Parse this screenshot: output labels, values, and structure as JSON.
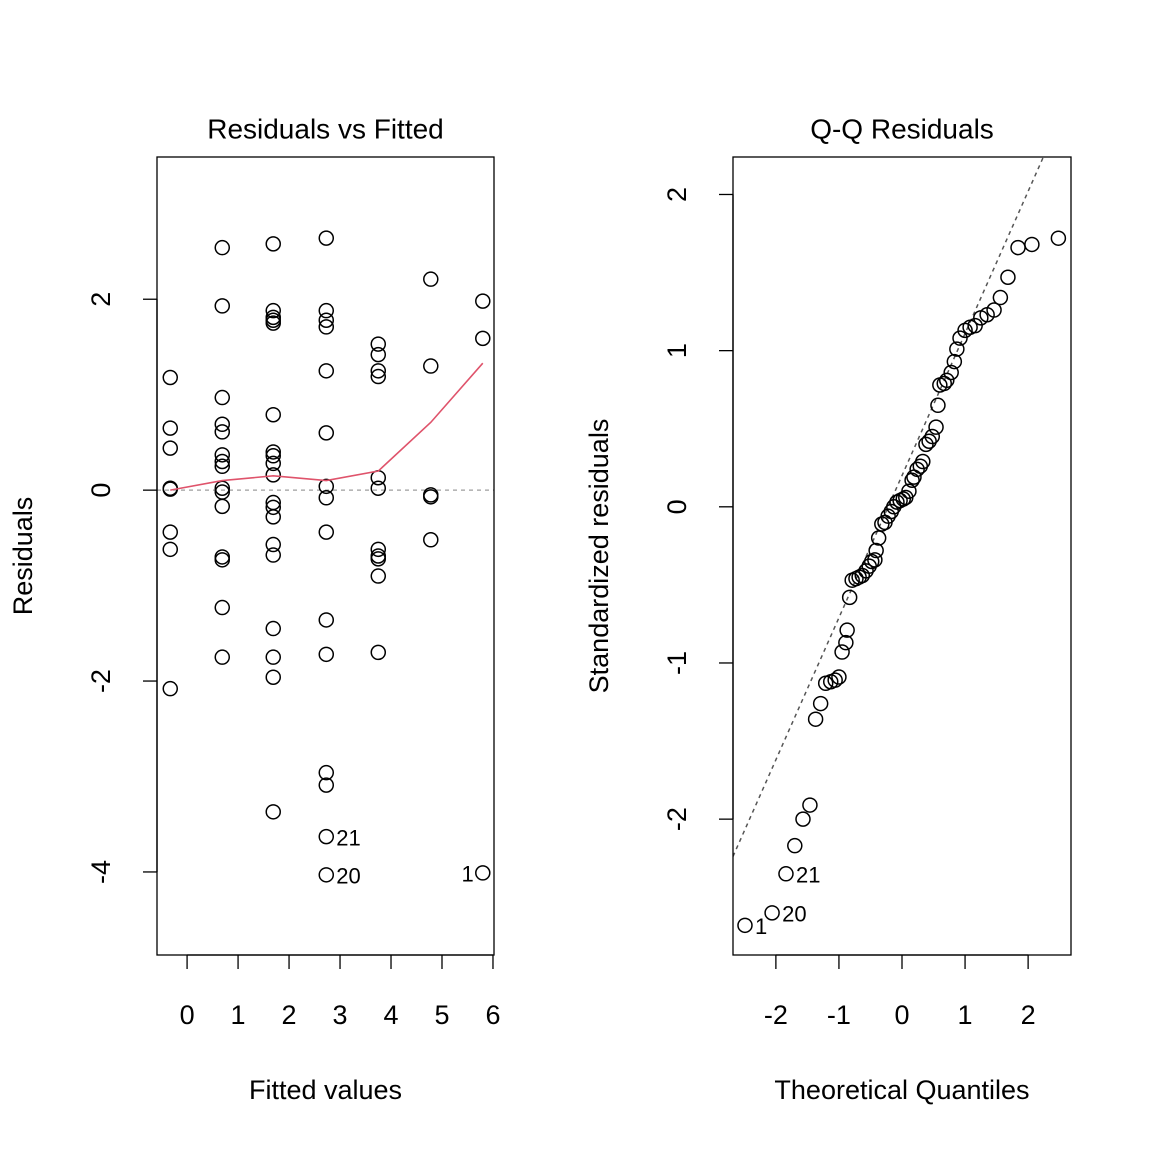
{
  "chart_data": [
    {
      "type": "scatter",
      "title": "Residuals vs Fitted",
      "xlabel": "Fitted values",
      "ylabel": "Residuals",
      "x": [
        -0.33,
        -0.33,
        -0.33,
        -0.33,
        -0.33,
        -0.33,
        -0.33,
        -0.33,
        0.69,
        0.69,
        0.69,
        0.69,
        0.69,
        0.69,
        0.69,
        0.69,
        0.69,
        0.69,
        0.69,
        0.69,
        0.69,
        0.69,
        0.69,
        1.69,
        1.69,
        1.69,
        1.69,
        1.69,
        1.69,
        1.69,
        1.69,
        1.69,
        1.69,
        1.69,
        1.69,
        1.69,
        1.69,
        1.69,
        1.69,
        1.69,
        1.69,
        1.69,
        2.73,
        2.73,
        2.73,
        2.73,
        2.73,
        2.73,
        2.73,
        2.73,
        2.73,
        2.73,
        2.73,
        2.73,
        2.73,
        2.73,
        2.73,
        3.75,
        3.75,
        3.75,
        3.75,
        3.75,
        3.75,
        3.75,
        3.75,
        3.75,
        3.75,
        3.75,
        4.78,
        4.78,
        4.78,
        4.78,
        4.78,
        5.8,
        5.8,
        5.8
      ],
      "values": [
        1.18,
        0.65,
        0.44,
        0.02,
        0.01,
        -0.44,
        -0.62,
        -2.08,
        2.54,
        1.93,
        0.97,
        0.69,
        0.61,
        0.37,
        0.3,
        0.25,
        0.02,
        -0.02,
        -0.17,
        -0.7,
        -0.73,
        -1.23,
        -1.75,
        2.58,
        1.88,
        1.81,
        1.78,
        1.75,
        0.79,
        0.4,
        0.36,
        0.28,
        0.16,
        -0.13,
        -0.18,
        -0.28,
        -0.57,
        -0.68,
        -1.45,
        -1.75,
        -1.96,
        -3.37,
        2.64,
        1.88,
        1.78,
        1.71,
        1.25,
        0.6,
        0.04,
        -0.08,
        -0.44,
        -1.36,
        -1.72,
        -2.96,
        -3.09,
        -3.63,
        -4.03,
        1.53,
        1.42,
        1.25,
        1.19,
        0.13,
        0.02,
        -0.62,
        -0.69,
        -0.72,
        -0.9,
        -1.7,
        2.21,
        1.3,
        -0.05,
        -0.07,
        -0.52,
        1.98,
        1.59,
        -4.01
      ],
      "color": "#000000",
      "smooth": {
        "color": "#DF536B",
        "x": [
          -0.33,
          0.69,
          1.69,
          2.73,
          3.75,
          4.78,
          5.8
        ],
        "values": [
          0.0,
          0.1,
          0.15,
          0.1,
          0.2,
          0.71,
          1.33
        ]
      },
      "hline": 0,
      "annotations": [
        {
          "text": "21",
          "x": 2.73,
          "y": -3.63,
          "side": "right"
        },
        {
          "text": "20",
          "x": 2.73,
          "y": -4.03,
          "side": "right"
        },
        {
          "text": "1",
          "x": 5.8,
          "y": -4.01,
          "side": "left"
        }
      ],
      "xlim": [
        -0.59,
        6.02
      ],
      "ylim": [
        -4.87,
        3.49
      ],
      "xticks": [
        0,
        1,
        2,
        3,
        4,
        5,
        6
      ],
      "yticks": [
        -4,
        -2,
        0,
        2
      ]
    },
    {
      "type": "scatter",
      "title": "Q-Q Residuals",
      "xlabel": "Theoretical Quantiles",
      "ylabel": "Standardized residuals",
      "x": [
        -2.49,
        -2.06,
        -1.84,
        -1.7,
        -1.57,
        -1.46,
        -1.37,
        -1.29,
        -1.21,
        -1.13,
        -1.06,
        -1.0,
        -0.95,
        -0.89,
        -0.87,
        -0.83,
        -0.79,
        -0.73,
        -0.68,
        -0.63,
        -0.57,
        -0.52,
        -0.48,
        -0.43,
        -0.41,
        -0.37,
        -0.32,
        -0.27,
        -0.22,
        -0.17,
        -0.13,
        -0.08,
        -0.03,
        0.02,
        0.06,
        0.11,
        0.16,
        0.19,
        0.24,
        0.29,
        0.33,
        0.38,
        0.43,
        0.48,
        0.54,
        0.57,
        0.6,
        0.67,
        0.71,
        0.78,
        0.83,
        0.87,
        0.92,
        1.0,
        1.08,
        1.16,
        1.25,
        1.35,
        1.46,
        1.56,
        1.68,
        1.84,
        2.06,
        2.48
      ],
      "values": [
        -2.68,
        -2.6,
        -2.35,
        -2.17,
        -2.0,
        -1.91,
        -1.36,
        -1.26,
        -1.13,
        -1.12,
        -1.11,
        -1.09,
        -0.93,
        -0.87,
        -0.79,
        -0.58,
        -0.47,
        -0.46,
        -0.45,
        -0.44,
        -0.41,
        -0.38,
        -0.35,
        -0.34,
        -0.28,
        -0.2,
        -0.11,
        -0.1,
        -0.06,
        -0.03,
        0.0,
        0.03,
        0.04,
        0.05,
        0.06,
        0.1,
        0.17,
        0.19,
        0.24,
        0.26,
        0.29,
        0.4,
        0.42,
        0.45,
        0.51,
        0.65,
        0.78,
        0.79,
        0.81,
        0.86,
        0.93,
        1.01,
        1.08,
        1.13,
        1.15,
        1.16,
        1.21,
        1.23,
        1.26,
        1.34,
        1.47,
        1.66,
        1.68,
        1.72
      ],
      "color": "#000000",
      "abline": {
        "intercept": 0.2,
        "slope": 0.91
      },
      "annotations": [
        {
          "text": "1",
          "x": -2.49,
          "y": -2.68,
          "side": "right"
        },
        {
          "text": "20",
          "x": -2.06,
          "y": -2.6,
          "side": "right"
        },
        {
          "text": "21",
          "x": -1.84,
          "y": -2.35,
          "side": "right"
        }
      ],
      "xlim": [
        -2.68,
        2.68
      ],
      "ylim": [
        -2.87,
        2.24
      ],
      "xticks": [
        -2,
        -1,
        0,
        1,
        2
      ],
      "yticks": [
        -2,
        -1,
        0,
        1,
        2
      ]
    }
  ]
}
